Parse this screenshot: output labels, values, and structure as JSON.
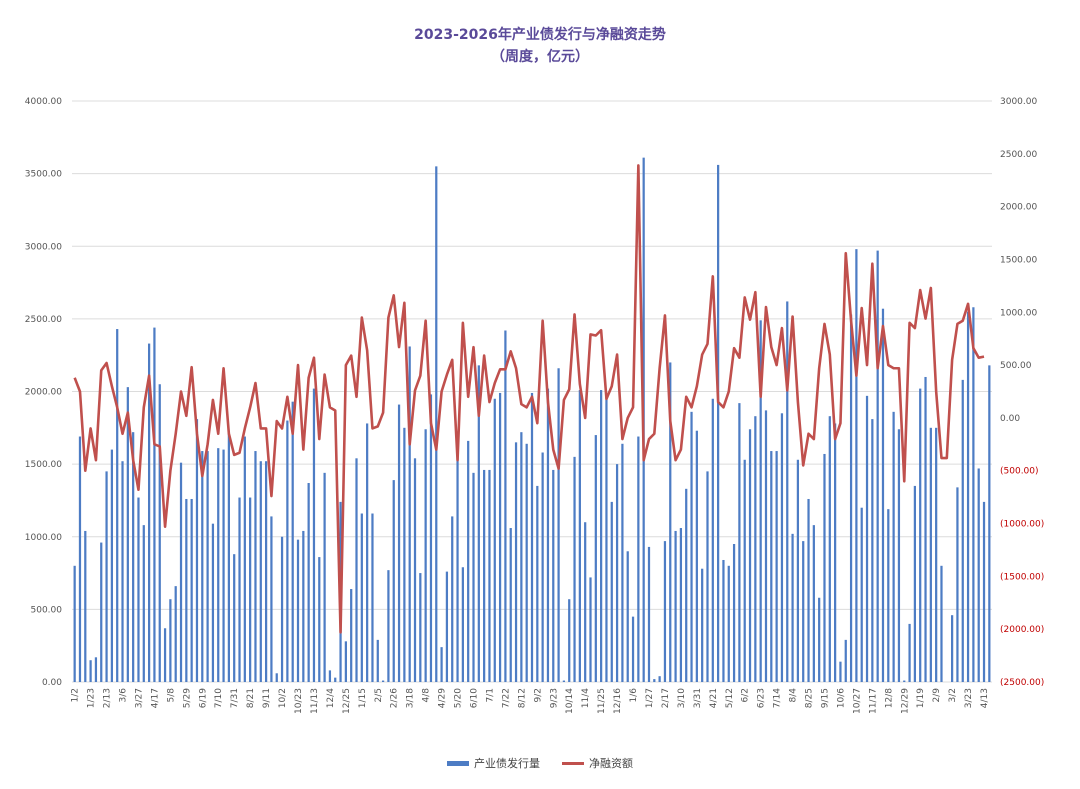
{
  "chart_data": {
    "type": "bar+line",
    "title": "2023-2026年产业债发行与净融资走势",
    "subtitle": "（周度，亿元）",
    "left_axis": {
      "ylim": [
        0,
        4000
      ],
      "ticks": [
        "0.00",
        "500.00",
        "1000.00",
        "1500.00",
        "2000.00",
        "2500.00",
        "3000.00",
        "3500.00",
        "4000.00"
      ]
    },
    "right_axis": {
      "ylim": [
        -2500,
        3000
      ],
      "ticks": [
        "(2500.00)",
        "(2000.00)",
        "(1500.00)",
        "(1000.00)",
        "(500.00)",
        "0.00",
        "500.00",
        "1000.00",
        "1500.00",
        "2000.00",
        "2500.00",
        "3000.00"
      ],
      "negative_color": "#c00000"
    },
    "x_tick_labels": [
      "1/2",
      "1/23",
      "2/13",
      "3/6",
      "3/27",
      "4/17",
      "5/8",
      "5/29",
      "6/19",
      "7/10",
      "7/31",
      "8/21",
      "9/11",
      "10/2",
      "10/23",
      "11/13",
      "12/4",
      "12/25",
      "1/15",
      "2/5",
      "2/26",
      "3/18",
      "4/8",
      "4/29",
      "5/20",
      "6/10",
      "7/1",
      "7/22",
      "8/12",
      "9/2",
      "9/23",
      "10/14",
      "11/4",
      "11/25",
      "12/16",
      "1/6",
      "1/27",
      "2/17",
      "3/10",
      "3/31",
      "4/21",
      "5/12",
      "6/2",
      "6/23",
      "7/14",
      "8/4",
      "8/25",
      "9/15",
      "10/6",
      "10/27",
      "11/17",
      "12/8",
      "12/29",
      "1/19",
      "2/9",
      "3/2",
      "3/23",
      "4/13"
    ],
    "grid": true,
    "legend_position": "bottom",
    "series": [
      {
        "name": "产业债发行量",
        "type": "bar",
        "axis": "left",
        "color": "#4d7cc4",
        "values": [
          800,
          1690,
          1040,
          150,
          170,
          960,
          1450,
          1600,
          2430,
          1520,
          2030,
          1720,
          1270,
          1080,
          2330,
          2440,
          2050,
          370,
          570,
          660,
          1510,
          1260,
          1260,
          1810,
          1590,
          1590,
          1090,
          1610,
          1600,
          1730,
          880,
          1270,
          1690,
          1270,
          1590,
          1520,
          1520,
          1140,
          60,
          1000,
          1800,
          1930,
          980,
          1040,
          1370,
          2020,
          860,
          1440,
          80,
          30,
          1240,
          280,
          640,
          1540,
          1160,
          1780,
          1160,
          290,
          10,
          770,
          1390,
          1910,
          1750,
          2310,
          1540,
          750,
          1740,
          1980,
          3550,
          240,
          760,
          1140,
          1620,
          790,
          1660,
          1440,
          2180,
          1460,
          1460,
          1950,
          1990,
          2420,
          1060,
          1650,
          1720,
          1640,
          1990,
          1350,
          1580,
          2020,
          1460,
          2160,
          10,
          570,
          1550,
          2010,
          1100,
          720,
          1700,
          2010,
          1980,
          1240,
          1500,
          1640,
          900,
          450,
          1690,
          3610,
          930,
          20,
          40,
          970,
          2200,
          1040,
          1060,
          1330,
          1860,
          1730,
          780,
          1450,
          1950,
          3560,
          840,
          800,
          950,
          1920,
          1530,
          1740,
          1830,
          2490,
          1870,
          1590,
          1590,
          1850,
          2620,
          1020,
          1530,
          970,
          1260,
          1080,
          580,
          1570,
          1830,
          1780,
          140,
          290,
          2530,
          2980,
          1200,
          1970,
          1810,
          2970,
          2570,
          1190,
          1860,
          1740,
          10,
          400,
          1350,
          2020,
          2100,
          1750,
          1750,
          800,
          0,
          460,
          1340,
          2080,
          2550,
          2580,
          1470,
          1240,
          2180
        ]
      },
      {
        "name": "净融资额",
        "type": "line",
        "axis": "right",
        "color": "#c0504d",
        "values": [
          380,
          250,
          -500,
          -100,
          -400,
          450,
          520,
          300,
          100,
          -150,
          50,
          -400,
          -680,
          100,
          400,
          -250,
          -270,
          -1030,
          -500,
          -150,
          250,
          20,
          480,
          -150,
          -550,
          -250,
          170,
          -150,
          470,
          -150,
          -350,
          -330,
          -100,
          100,
          330,
          -100,
          -100,
          -740,
          -30,
          -100,
          200,
          -150,
          500,
          -300,
          380,
          570,
          -200,
          410,
          100,
          70,
          -2030,
          500,
          590,
          200,
          950,
          640,
          -100,
          -80,
          50,
          950,
          1160,
          670,
          1090,
          -250,
          260,
          400,
          920,
          -50,
          -300,
          250,
          410,
          550,
          -400,
          900,
          200,
          670,
          20,
          590,
          150,
          330,
          460,
          460,
          630,
          470,
          130,
          100,
          200,
          -50,
          920,
          150,
          -300,
          -480,
          170,
          270,
          980,
          320,
          0,
          790,
          780,
          830,
          180,
          300,
          600,
          -200,
          0,
          100,
          2390,
          -400,
          -200,
          -150,
          470,
          970,
          -30,
          -400,
          -300,
          200,
          100,
          300,
          600,
          700,
          1340,
          150,
          100,
          250,
          660,
          570,
          1140,
          930,
          1190,
          200,
          1050,
          670,
          500,
          850,
          260,
          960,
          150,
          -450,
          -150,
          -200,
          470,
          890,
          600,
          -200,
          -50,
          1560,
          920,
          400,
          1040,
          500,
          1460,
          470,
          870,
          500,
          470,
          470,
          -600,
          900,
          850,
          1210,
          940,
          1230,
          250,
          -380,
          -380,
          550,
          890,
          920,
          1080,
          660,
          570,
          580
        ]
      }
    ]
  }
}
